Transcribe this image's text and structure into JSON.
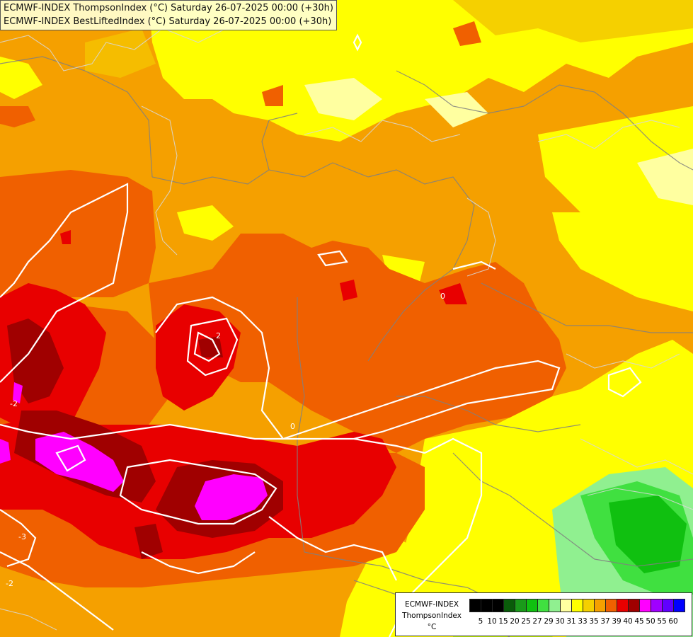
{
  "titles": {
    "line1": "ECMWF-INDEX ThompsonIndex (°C) Saturday 26-07-2025 00:00 (+30h)",
    "line2": "ECMWF-INDEX BestLiftedIndex (°C) Saturday 26-07-2025 00:00 (+30h)"
  },
  "legend": {
    "model": "ECMWF-INDEX",
    "variable": "ThompsonIndex",
    "unit": "°C",
    "ticks": [
      "5",
      "10",
      "15",
      "20",
      "25",
      "27",
      "29",
      "30",
      "31",
      "33",
      "35",
      "37",
      "39",
      "40",
      "45",
      "50",
      "55",
      "60"
    ],
    "colors": [
      "#000000",
      "#000000",
      "#000000",
      "#0a5c0a",
      "#1a9a1a",
      "#10c010",
      "#40e040",
      "#90f090",
      "#ffffa0",
      "#ffff00",
      "#f5d000",
      "#f5a000",
      "#f06000",
      "#e80000",
      "#a00000",
      "#ff00ff",
      "#a000ff",
      "#6000ff",
      "#0000ff"
    ]
  },
  "contour_labels": [
    "2",
    "-2",
    "-3",
    "-2",
    "0",
    "0"
  ]
}
